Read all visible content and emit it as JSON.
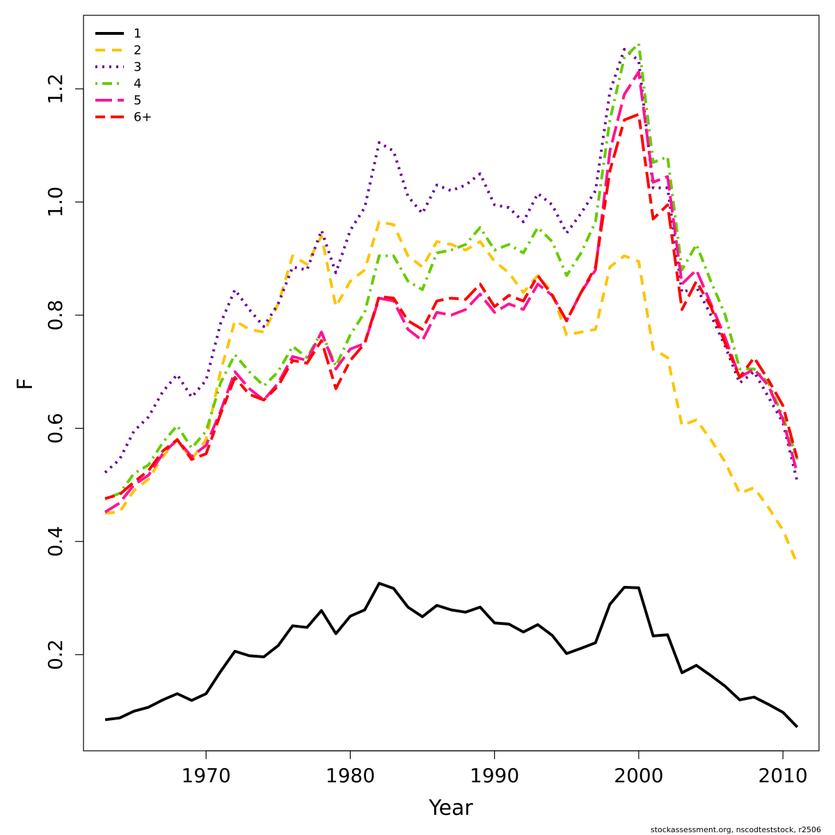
{
  "chart_data": {
    "type": "line",
    "xlabel": "Year",
    "ylabel": "F",
    "xlim": [
      1961.5,
      2012.5
    ],
    "ylim": [
      0.03,
      1.33
    ],
    "x_ticks": [
      1970,
      1980,
      1990,
      2000,
      2010
    ],
    "y_ticks": [
      0.2,
      0.4,
      0.6,
      0.8,
      1.0,
      1.2
    ],
    "y_tick_labels": [
      "0.2",
      "0.4",
      "0.6",
      "0.8",
      "1.0",
      "1.2"
    ],
    "grid": false,
    "legend_position": "top-left",
    "credit": "stockassessment.org, nscodteststock, r2506",
    "x": [
      1963,
      1964,
      1965,
      1966,
      1967,
      1968,
      1969,
      1970,
      1971,
      1972,
      1973,
      1974,
      1975,
      1976,
      1977,
      1978,
      1979,
      1980,
      1981,
      1982,
      1983,
      1984,
      1985,
      1986,
      1987,
      1988,
      1989,
      1990,
      1991,
      1992,
      1993,
      1994,
      1995,
      1996,
      1997,
      1998,
      1999,
      2000,
      2001,
      2002,
      2003,
      2004,
      2005,
      2006,
      2007,
      2008,
      2009,
      2010,
      2011
    ],
    "series": [
      {
        "name": "1",
        "color": "#000000",
        "dash": "solid",
        "values": [
          0.085,
          0.088,
          0.1,
          0.107,
          0.12,
          0.131,
          0.119,
          0.131,
          0.17,
          0.206,
          0.198,
          0.196,
          0.216,
          0.251,
          0.248,
          0.278,
          0.237,
          0.268,
          0.279,
          0.326,
          0.317,
          0.284,
          0.267,
          0.287,
          0.279,
          0.275,
          0.284,
          0.256,
          0.254,
          0.24,
          0.253,
          0.234,
          0.202,
          0.211,
          0.221,
          0.289,
          0.319,
          0.318,
          0.233,
          0.235,
          0.168,
          0.181,
          0.163,
          0.144,
          0.12,
          0.125,
          0.112,
          0.098,
          0.072
        ]
      },
      {
        "name": "2",
        "color": "#FFC300",
        "dash": "dashed",
        "values": [
          0.45,
          0.452,
          0.49,
          0.51,
          0.55,
          0.58,
          0.545,
          0.58,
          0.7,
          0.79,
          0.775,
          0.77,
          0.82,
          0.905,
          0.89,
          0.94,
          0.815,
          0.86,
          0.88,
          0.965,
          0.96,
          0.905,
          0.885,
          0.93,
          0.925,
          0.915,
          0.93,
          0.895,
          0.875,
          0.84,
          0.87,
          0.84,
          0.765,
          0.77,
          0.775,
          0.885,
          0.905,
          0.895,
          0.74,
          0.725,
          0.605,
          0.615,
          0.58,
          0.54,
          0.485,
          0.495,
          0.46,
          0.42,
          0.36
        ]
      },
      {
        "name": "3",
        "color": "#660099",
        "dash": "dotted",
        "values": [
          0.522,
          0.545,
          0.595,
          0.62,
          0.665,
          0.695,
          0.655,
          0.685,
          0.785,
          0.845,
          0.81,
          0.78,
          0.82,
          0.885,
          0.88,
          0.95,
          0.875,
          0.95,
          0.99,
          1.105,
          1.09,
          1.01,
          0.98,
          1.03,
          1.02,
          1.03,
          1.05,
          0.995,
          0.99,
          0.965,
          1.015,
          0.995,
          0.945,
          0.98,
          1.02,
          1.195,
          1.27,
          1.25,
          1.025,
          1.025,
          0.84,
          0.85,
          0.8,
          0.745,
          0.68,
          0.7,
          0.655,
          0.61,
          0.505
        ]
      },
      {
        "name": "4",
        "color": "#66CC00",
        "dash": "dotdash",
        "values": [
          0.475,
          0.485,
          0.52,
          0.535,
          0.575,
          0.605,
          0.565,
          0.595,
          0.68,
          0.73,
          0.7,
          0.675,
          0.7,
          0.745,
          0.725,
          0.77,
          0.71,
          0.765,
          0.805,
          0.905,
          0.905,
          0.86,
          0.845,
          0.91,
          0.915,
          0.925,
          0.955,
          0.915,
          0.925,
          0.91,
          0.955,
          0.93,
          0.87,
          0.91,
          0.965,
          1.145,
          1.255,
          1.28,
          1.07,
          1.08,
          0.88,
          0.925,
          0.86,
          0.8,
          0.705,
          0.705,
          0.68,
          0.62,
          0.545
        ]
      },
      {
        "name": "5",
        "color": "#FF1493",
        "dash": "longdash",
        "values": [
          0.452,
          0.468,
          0.5,
          0.517,
          0.555,
          0.58,
          0.55,
          0.57,
          0.63,
          0.7,
          0.67,
          0.65,
          0.68,
          0.727,
          0.72,
          0.77,
          0.705,
          0.74,
          0.75,
          0.83,
          0.825,
          0.775,
          0.755,
          0.805,
          0.8,
          0.81,
          0.837,
          0.805,
          0.82,
          0.81,
          0.855,
          0.835,
          0.79,
          0.84,
          0.88,
          1.09,
          1.19,
          1.23,
          1.035,
          1.045,
          0.855,
          0.88,
          0.82,
          0.76,
          0.69,
          0.705,
          0.675,
          0.615,
          0.52
        ]
      },
      {
        "name": "6+",
        "color": "#FF0000",
        "dash": "twodash",
        "values": [
          0.476,
          0.483,
          0.505,
          0.525,
          0.56,
          0.58,
          0.545,
          0.555,
          0.625,
          0.69,
          0.66,
          0.65,
          0.675,
          0.72,
          0.715,
          0.755,
          0.67,
          0.72,
          0.75,
          0.833,
          0.83,
          0.79,
          0.775,
          0.825,
          0.83,
          0.828,
          0.855,
          0.815,
          0.835,
          0.825,
          0.87,
          0.835,
          0.79,
          0.84,
          0.885,
          1.055,
          1.145,
          1.155,
          0.97,
          0.995,
          0.81,
          0.86,
          0.815,
          0.75,
          0.69,
          0.725,
          0.685,
          0.64,
          0.545
        ]
      }
    ]
  }
}
